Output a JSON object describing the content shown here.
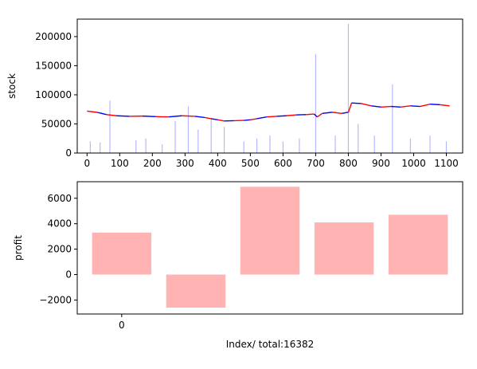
{
  "chart_data": [
    {
      "type": "line",
      "ylabel": "stock",
      "xlabel": "",
      "xlim": [
        -30,
        1150
      ],
      "ylim": [
        0,
        230000
      ],
      "x_ticks": [
        0,
        100,
        200,
        300,
        400,
        500,
        600,
        700,
        800,
        900,
        1000,
        1100
      ],
      "x_tick_labels": [
        "0",
        "100",
        "200",
        "300",
        "400",
        "500",
        "600",
        "700",
        "800",
        "900",
        "1000",
        "1100"
      ],
      "y_ticks": [
        0,
        50000,
        100000,
        150000,
        200000
      ],
      "y_tick_labels": [
        "0",
        "50000",
        "100000",
        "150000",
        "200000"
      ],
      "price_series": {
        "colors": [
          "#ff0000",
          "#0000ff"
        ],
        "x": [
          0,
          30,
          60,
          90,
          130,
          170,
          210,
          250,
          290,
          330,
          360,
          380,
          400,
          420,
          450,
          480,
          500,
          520,
          550,
          580,
          610,
          640,
          670,
          695,
          705,
          720,
          750,
          780,
          800,
          810,
          840,
          870,
          900,
          930,
          960,
          990,
          1020,
          1050,
          1080,
          1110
        ],
        "values": [
          72000,
          70000,
          66000,
          64000,
          63000,
          63500,
          62500,
          62000,
          64000,
          63000,
          61000,
          59000,
          57000,
          55000,
          55500,
          56000,
          57000,
          59000,
          62000,
          63000,
          64000,
          65500,
          66000,
          67000,
          62000,
          68000,
          70000,
          68000,
          70000,
          86000,
          85000,
          81000,
          79000,
          80000,
          79000,
          81000,
          80000,
          84000,
          83000,
          81000
        ]
      },
      "volume_series": {
        "color": "#b8b8ff",
        "x": [
          10,
          40,
          70,
          150,
          180,
          230,
          270,
          310,
          340,
          380,
          420,
          480,
          520,
          560,
          600,
          650,
          700,
          760,
          800,
          830,
          880,
          935,
          990,
          1050,
          1100
        ],
        "values": [
          20000,
          18000,
          90000,
          22000,
          25000,
          15000,
          55000,
          80000,
          40000,
          60000,
          45000,
          20000,
          25000,
          30000,
          20000,
          25000,
          170000,
          30000,
          222000,
          50000,
          30000,
          118000,
          25000,
          30000,
          20000
        ]
      }
    },
    {
      "type": "bar",
      "ylabel": "profit",
      "xlabel": "Index/ total:16382",
      "categories": [
        "0",
        "",
        "",
        "",
        ""
      ],
      "values": [
        3300,
        -2600,
        6900,
        4100,
        4700
      ],
      "color": "#ffb3b3",
      "ylim": [
        -3100,
        7300
      ],
      "y_ticks": [
        -2000,
        0,
        2000,
        4000,
        6000
      ],
      "y_tick_labels": [
        "−2000",
        "0",
        "2000",
        "4000",
        "6000"
      ]
    }
  ]
}
